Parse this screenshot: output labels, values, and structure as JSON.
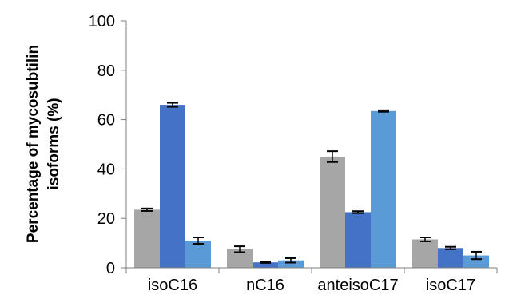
{
  "chart_data": {
    "type": "bar",
    "title": "",
    "xlabel": "",
    "ylabel_lines": [
      "Percentage of mycosubtilin",
      "isoforms (%)"
    ],
    "ylim": [
      0,
      100
    ],
    "yticks": [
      0,
      20,
      40,
      60,
      80,
      100
    ],
    "categories": [
      "isoC16",
      "nC16",
      "anteisoC17",
      "isoC17"
    ],
    "grid": false,
    "legend": "none",
    "series": [
      {
        "color": "#a6a6a6",
        "values": [
          23.5,
          7.5,
          45,
          11.5
        ],
        "errors": [
          0.5,
          1.2,
          2.2,
          0.8
        ]
      },
      {
        "color": "#4472c4",
        "values": [
          66,
          2.2,
          22.5,
          8
        ],
        "errors": [
          0.8,
          0.2,
          0.4,
          0.5
        ]
      },
      {
        "color": "#5b9bd5",
        "values": [
          11,
          3,
          63.5,
          5
        ],
        "errors": [
          1.3,
          0.9,
          0.3,
          1.5
        ]
      }
    ]
  }
}
